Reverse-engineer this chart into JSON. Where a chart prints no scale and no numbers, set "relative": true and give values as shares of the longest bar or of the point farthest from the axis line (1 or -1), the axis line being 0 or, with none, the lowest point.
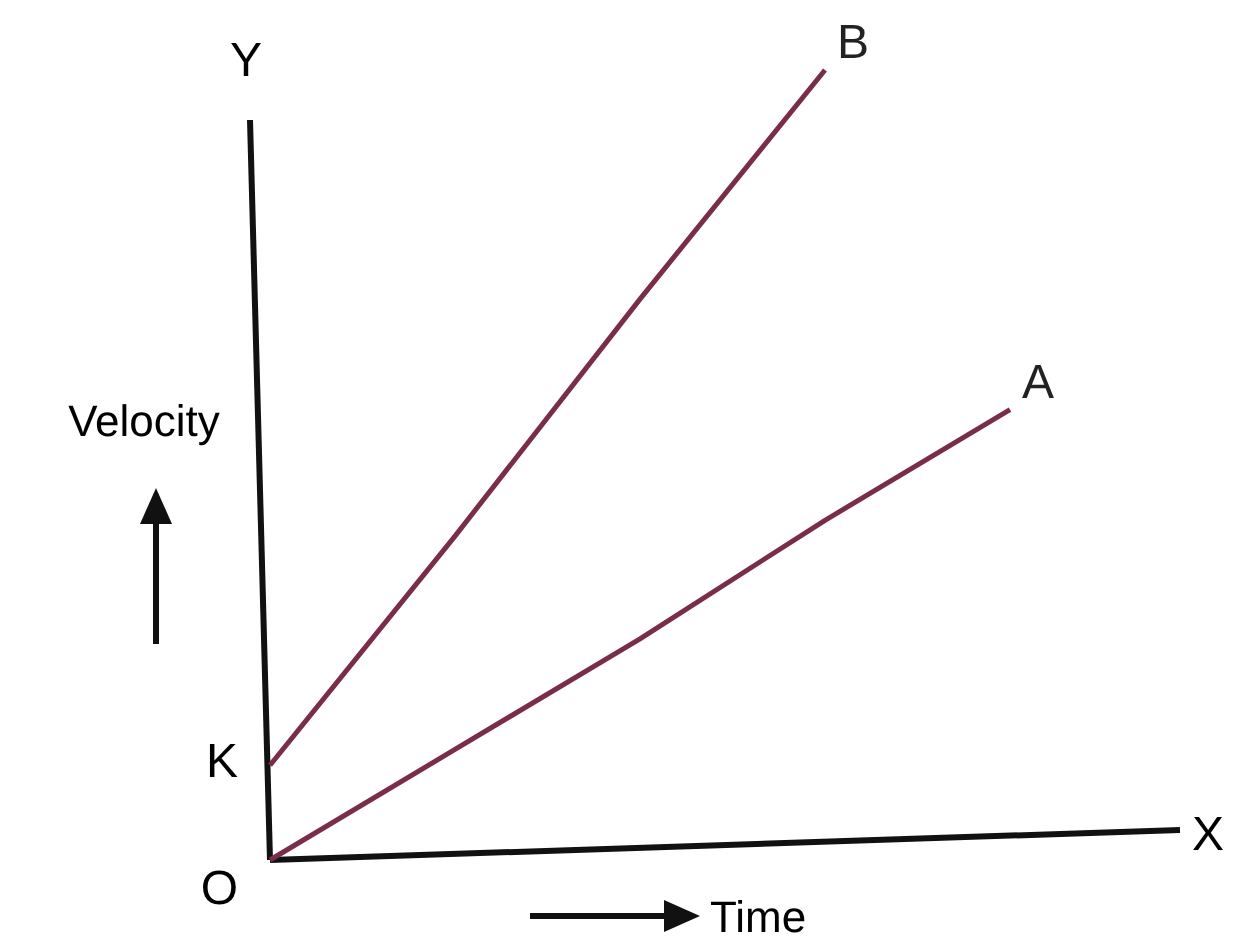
{
  "chart_data": {
    "type": "line",
    "relative": true,
    "xlabel": "Time",
    "ylabel": "Velocity",
    "categories": [
      null,
      null,
      null,
      null,
      null
    ],
    "series": [
      {
        "name": "A",
        "color": "#7a2d4a",
        "values": [
          0,
          0.14,
          0.28,
          0.43,
          0.57
        ]
      },
      {
        "name": "B",
        "color": "#7a2d4a",
        "values": [
          0.12,
          0.41,
          0.71,
          1.0,
          null
        ]
      }
    ],
    "annotations": [
      "Y",
      "X",
      "K",
      "O"
    ]
  }
}
